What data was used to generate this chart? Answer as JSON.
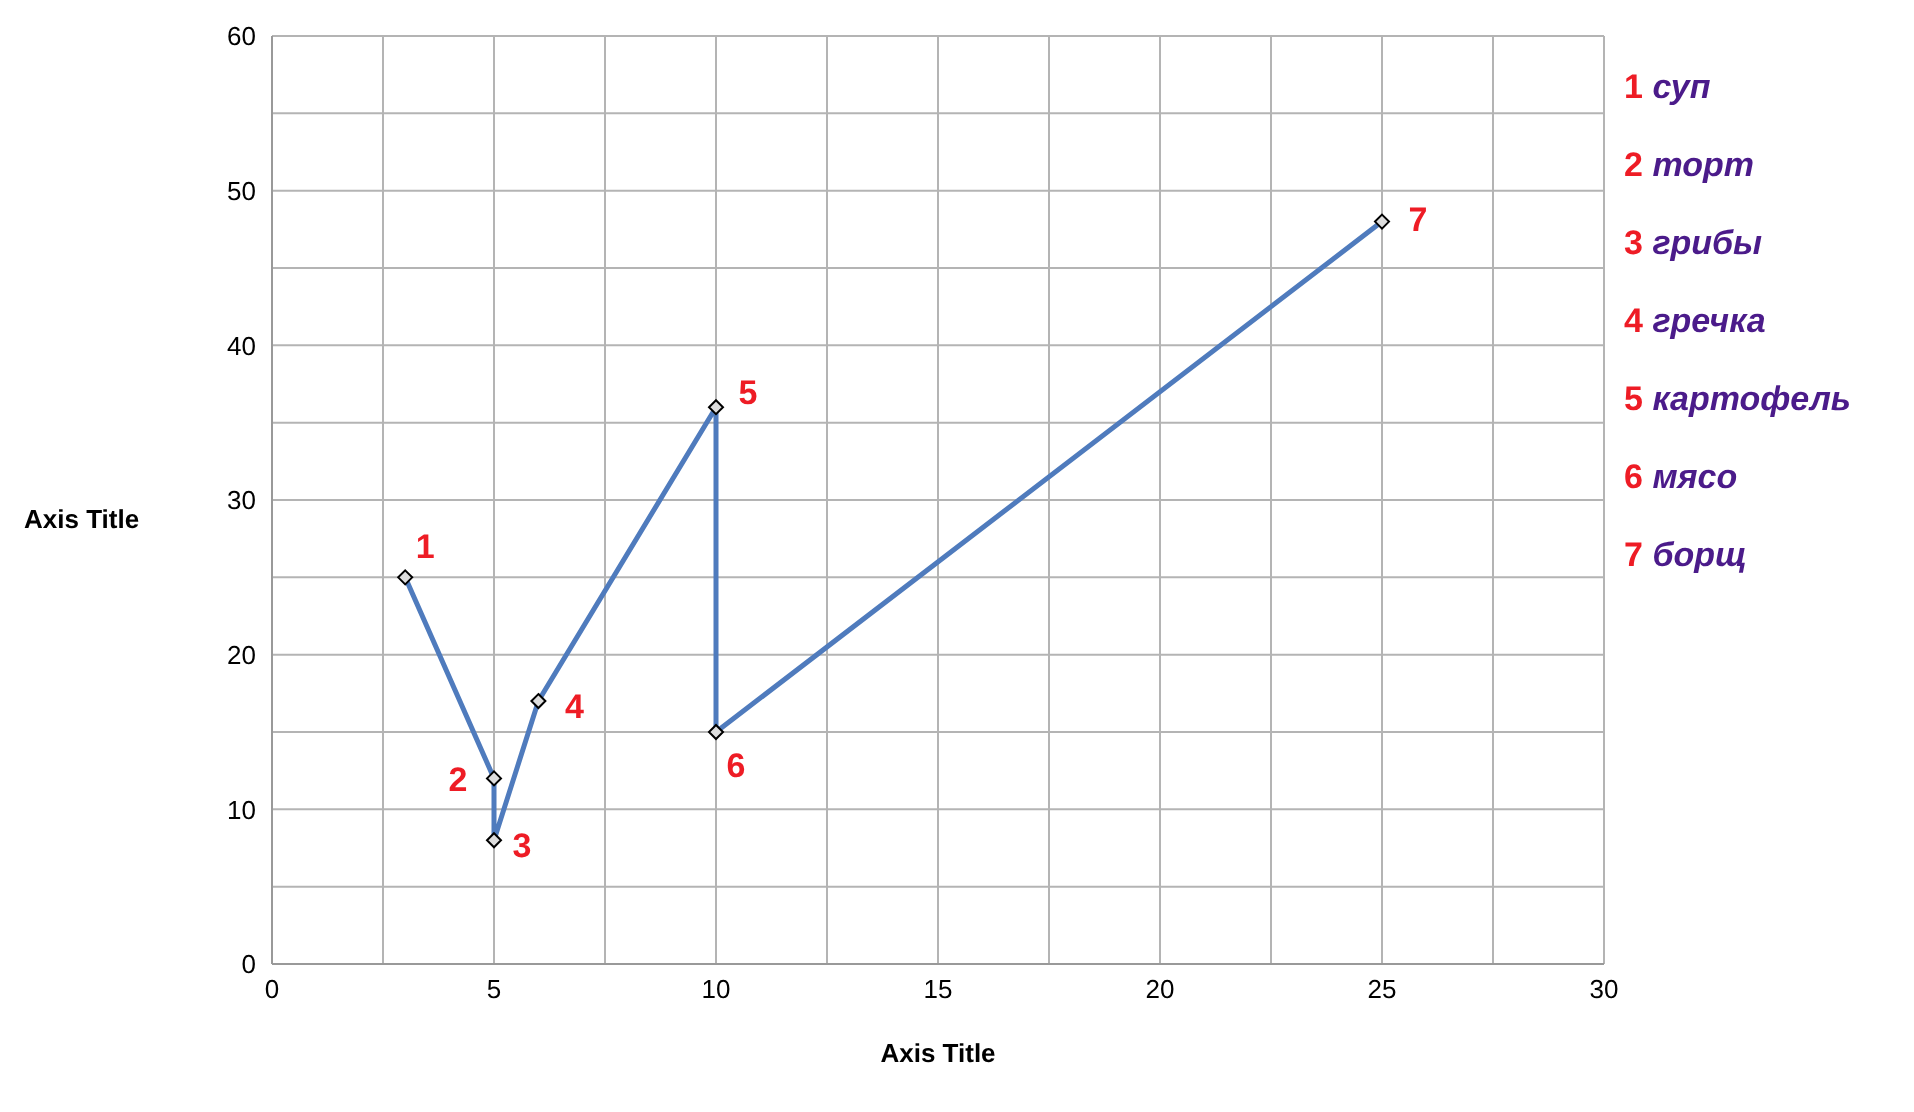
{
  "chart_data": {
    "type": "line",
    "xlabel": "Axis Title",
    "ylabel": "Axis Title",
    "x": [
      3,
      5,
      5,
      6,
      10,
      10,
      25
    ],
    "series": [
      {
        "color": "#4f7bbd",
        "values": [
          25,
          12,
          8,
          17,
          36,
          15,
          48
        ]
      }
    ],
    "xlim": [
      0,
      30
    ],
    "xticks": [
      0,
      {
        "value": 2.5,
        "label": null
      },
      5,
      {
        "value": 7.5,
        "label": null
      },
      10,
      {
        "value": 12.5,
        "label": null
      },
      15,
      {
        "value": 17.5,
        "label": null
      },
      20,
      {
        "value": 22.5,
        "label": null
      },
      25,
      {
        "value": 27.5,
        "label": null
      },
      30
    ],
    "ylim": [
      0,
      60
    ],
    "yticks": [
      0,
      {
        "value": 5,
        "label": null
      },
      10,
      {
        "value": 15,
        "label": null
      },
      20,
      {
        "value": 25,
        "label": null
      },
      30,
      {
        "value": 35,
        "label": null
      },
      40,
      {
        "value": 45,
        "label": null
      },
      50,
      {
        "value": 55,
        "label": null
      },
      60
    ],
    "grid": true,
    "marker": "diamond",
    "line_style": "solid",
    "annotations": [
      {
        "text": "1",
        "x": 3,
        "y": 25
      },
      {
        "text": "2",
        "x": 5,
        "y": 12
      },
      {
        "text": "3",
        "x": 5,
        "y": 8
      },
      {
        "text": "4",
        "x": 6,
        "y": 17
      },
      {
        "text": "5",
        "x": 10,
        "y": 36
      },
      {
        "text": "6",
        "x": 10,
        "y": 15
      },
      {
        "text": "7",
        "x": 25,
        "y": 48
      },
      "1 суп",
      "2 торт",
      "3 грибы",
      "4 гречка",
      "5 картофель",
      "6 мясо",
      "7 борщ"
    ]
  }
}
